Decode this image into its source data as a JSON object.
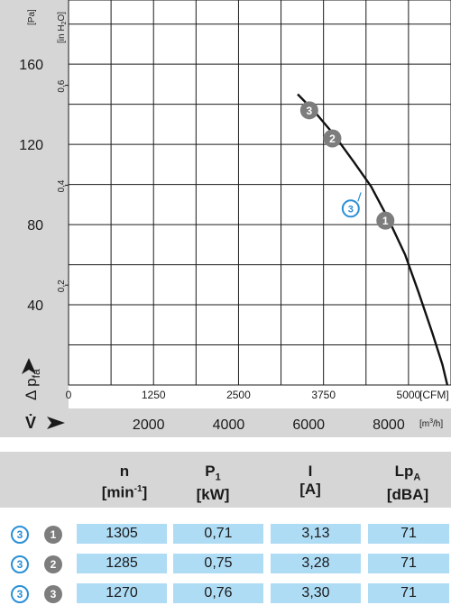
{
  "chart_data": {
    "type": "line",
    "y_axis_left": {
      "unit": "[Pa]",
      "ticks": [
        "160",
        "120",
        "80",
        "40"
      ],
      "range": [
        0,
        192
      ]
    },
    "y_axis_inner": {
      "unit": "[in H2O]",
      "ticks": [
        "0,6",
        "0,4",
        "0,2"
      ]
    },
    "y_label": "Δ pfa",
    "x_axis_cfm": {
      "ticks": [
        "0",
        "1250",
        "2500",
        "3750",
        "5000"
      ],
      "unit": "[CFM]",
      "range": [
        0,
        5625
      ]
    },
    "x_axis_m3h": {
      "label": "V̇",
      "ticks": [
        "2000",
        "4000",
        "6000",
        "8000"
      ],
      "unit": "[m³/h]"
    },
    "curve": {
      "x_cfm": [
        3370,
        3600,
        3900,
        4200,
        4450,
        4700,
        4950,
        5150,
        5350,
        5500,
        5570
      ],
      "y_pa": [
        145,
        137,
        125,
        111,
        99,
        83,
        65,
        46,
        26,
        10,
        0
      ]
    },
    "operating_points": [
      {
        "label": "1",
        "x_cfm": 4660,
        "y_pa": 82
      },
      {
        "label": "2",
        "x_cfm": 3880,
        "y_pa": 123
      },
      {
        "label": "3",
        "x_cfm": 3540,
        "y_pa": 137
      }
    ],
    "curve_label": {
      "label": "3",
      "x_cfm": 4150,
      "y_pa": 88
    }
  },
  "table": {
    "headers": [
      {
        "main": "n",
        "sub": "[min",
        "sup": "-1",
        "close": "]"
      },
      {
        "main": "P",
        "msub": "1",
        "sub": "[kW]"
      },
      {
        "main": "I",
        "sub": "[A]"
      },
      {
        "main": "Lp",
        "msub": "A",
        "sub": "[dBA]"
      }
    ],
    "rows": [
      {
        "curve": "3",
        "point": "1",
        "n": "1305",
        "p1": "0,71",
        "i": "3,13",
        "lpa": "71"
      },
      {
        "curve": "3",
        "point": "2",
        "n": "1285",
        "p1": "0,75",
        "i": "3,28",
        "lpa": "71"
      },
      {
        "curve": "3",
        "point": "3",
        "n": "1270",
        "p1": "0,76",
        "i": "3,30",
        "lpa": "71"
      }
    ]
  },
  "colors": {
    "band": "#d6d6d6",
    "cell": "#aedcf5",
    "blue_circle": "#2a8fd6",
    "gray_circle": "#7d7d7d"
  }
}
